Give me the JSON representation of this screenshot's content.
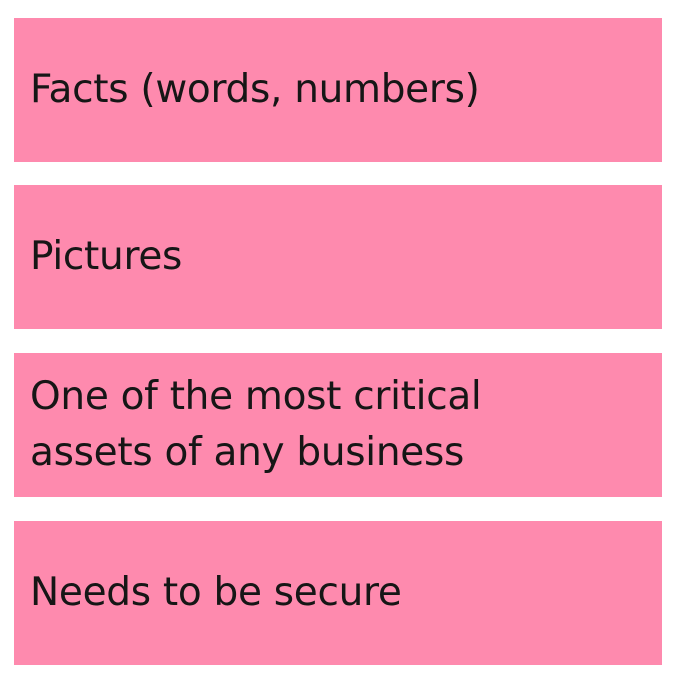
{
  "cards": [
    {
      "text": "Facts (words, numbers)"
    },
    {
      "text": "Pictures"
    },
    {
      "text": "One of the most critical\nassets of any business"
    },
    {
      "text": "Needs to be secure"
    }
  ],
  "colors": {
    "card_background": "#fe8aae",
    "text": "#161616",
    "page_background": "#ffffff"
  }
}
